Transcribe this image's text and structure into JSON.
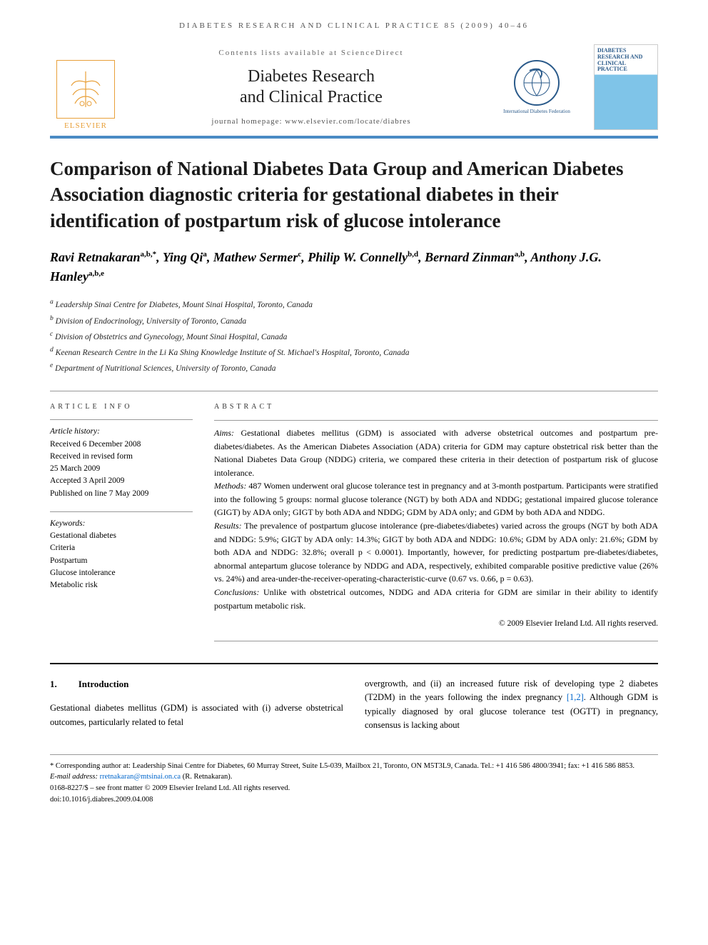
{
  "running_head": "DIABETES RESEARCH AND CLINICAL PRACTICE 85 (2009) 40–46",
  "masthead": {
    "publisher_logo_label": "ELSEVIER",
    "contents_line": "Contents lists available at ScienceDirect",
    "journal_name_line1": "Diabetes Research",
    "journal_name_line2": "and Clinical Practice",
    "homepage_line": "journal homepage: www.elsevier.com/locate/diabres",
    "federation_label": "International Diabetes Federation",
    "cover_title": "DIABETES RESEARCH AND CLINICAL PRACTICE"
  },
  "article": {
    "title": "Comparison of National Diabetes Data Group and American Diabetes Association diagnostic criteria for gestational diabetes in their identification of postpartum risk of glucose intolerance",
    "authors_html": "Ravi Retnakaran<sup>a,b,*</sup>, Ying Qi<sup>a</sup>, Mathew Sermer<sup>c</sup>, Philip W. Connelly<sup>b,d</sup>, Bernard Zinman<sup>a,b</sup>, Anthony J.G. Hanley<sup>a,b,e</sup>",
    "affiliations": [
      "a Leadership Sinai Centre for Diabetes, Mount Sinai Hospital, Toronto, Canada",
      "b Division of Endocrinology, University of Toronto, Canada",
      "c Division of Obstetrics and Gynecology, Mount Sinai Hospital, Canada",
      "d Keenan Research Centre in the Li Ka Shing Knowledge Institute of St. Michael's Hospital, Toronto, Canada",
      "e Department of Nutritional Sciences, University of Toronto, Canada"
    ]
  },
  "article_info": {
    "heading": "ARTICLE INFO",
    "history_label": "Article history:",
    "history": [
      "Received 6 December 2008",
      "Received in revised form",
      "25 March 2009",
      "Accepted 3 April 2009",
      "Published on line 7 May 2009"
    ],
    "keywords_label": "Keywords:",
    "keywords": [
      "Gestational diabetes",
      "Criteria",
      "Postpartum",
      "Glucose intolerance",
      "Metabolic risk"
    ]
  },
  "abstract": {
    "heading": "ABSTRACT",
    "aims_label": "Aims:",
    "aims_text": " Gestational diabetes mellitus (GDM) is associated with adverse obstetrical outcomes and postpartum pre-diabetes/diabetes. As the American Diabetes Association (ADA) criteria for GDM may capture obstetrical risk better than the National Diabetes Data Group (NDDG) criteria, we compared these criteria in their detection of postpartum risk of glucose intolerance.",
    "methods_label": "Methods:",
    "methods_text": " 487 Women underwent oral glucose tolerance test in pregnancy and at 3-month postpartum. Participants were stratified into the following 5 groups: normal glucose tolerance (NGT) by both ADA and NDDG; gestational impaired glucose tolerance (GIGT) by ADA only; GIGT by both ADA and NDDG; GDM by ADA only; and GDM by both ADA and NDDG.",
    "results_label": "Results:",
    "results_text": " The prevalence of postpartum glucose intolerance (pre-diabetes/diabetes) varied across the groups (NGT by both ADA and NDDG: 5.9%; GIGT by ADA only: 14.3%; GIGT by both ADA and NDDG: 10.6%; GDM by ADA only: 21.6%; GDM by both ADA and NDDG: 32.8%; overall p < 0.0001). Importantly, however, for predicting postpartum pre-diabetes/diabetes, abnormal antepartum glucose tolerance by NDDG and ADA, respectively, exhibited comparable positive predictive value (26% vs. 24%) and area-under-the-receiver-operating-characteristic-curve (0.67 vs. 0.66, p = 0.63).",
    "conclusions_label": "Conclusions:",
    "conclusions_text": " Unlike with obstetrical outcomes, NDDG and ADA criteria for GDM are similar in their ability to identify postpartum metabolic risk.",
    "copyright": "© 2009 Elsevier Ireland Ltd. All rights reserved."
  },
  "body": {
    "section_number": "1.",
    "section_title": "Introduction",
    "col1_text": "Gestational diabetes mellitus (GDM) is associated with (i) adverse obstetrical outcomes, particularly related to fetal",
    "col2_text_pre": "overgrowth, and (ii) an increased future risk of developing type 2 diabetes (T2DM) in the years following the index pregnancy ",
    "col2_refs": "[1,2]",
    "col2_text_post": ". Although GDM is typically diagnosed by oral glucose tolerance test (OGTT) in pregnancy, consensus is lacking about"
  },
  "footnotes": {
    "corr_marker": "*",
    "corr_text": " Corresponding author at: Leadership Sinai Centre for Diabetes, 60 Murray Street, Suite L5-039, Mailbox 21, Toronto, ON M5T3L9, Canada. Tel.: +1 416 586 4800/3941; fax: +1 416 586 8853.",
    "email_label": "E-mail address: ",
    "email": "rretnakaran@mtsinai.on.ca",
    "email_suffix": " (R. Retnakaran).",
    "issn_line": "0168-8227/$ – see front matter © 2009 Elsevier Ireland Ltd. All rights reserved.",
    "doi_line": "doi:10.1016/j.diabres.2009.04.008"
  },
  "colors": {
    "accent_blue": "#4a8bc4",
    "elsevier_orange": "#e8a03a",
    "link_blue": "#0066cc"
  }
}
